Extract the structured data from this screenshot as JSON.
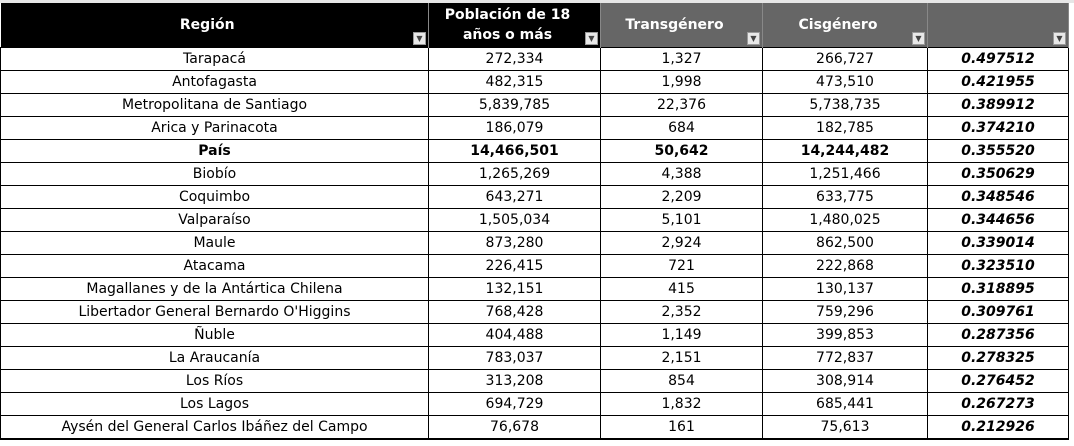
{
  "headers": [
    "Región",
    "Población de 18 años o más",
    "Transgénero",
    "Cisgénero",
    ""
  ],
  "filter_icon": "dropdown-arrow-icon",
  "rows": [
    [
      "Tarapacá",
      "272,334",
      "1,327",
      "266,727",
      "0.497512"
    ],
    [
      "Antofagasta",
      "482,315",
      "1,998",
      "473,510",
      "0.421955"
    ],
    [
      "Metropolitana de Santiago",
      "5,839,785",
      "22,376",
      "5,738,735",
      "0.389912"
    ],
    [
      "Arica y Parinacota",
      "186,079",
      "684",
      "182,785",
      "0.374210"
    ],
    [
      "País",
      "14,466,501",
      "50,642",
      "14,244,482",
      "0.355520"
    ],
    [
      "Biobío",
      "1,265,269",
      "4,388",
      "1,251,466",
      "0.350629"
    ],
    [
      "Coquimbo",
      "643,271",
      "2,209",
      "633,775",
      "0.348546"
    ],
    [
      "Valparaíso",
      "1,505,034",
      "5,101",
      "1,480,025",
      "0.344656"
    ],
    [
      "Maule",
      "873,280",
      "2,924",
      "862,500",
      "0.339014"
    ],
    [
      "Atacama",
      "226,415",
      "721",
      "222,868",
      "0.323510"
    ],
    [
      "Magallanes y de la Antártica Chilena",
      "132,151",
      "415",
      "130,137",
      "0.318895"
    ],
    [
      "Libertador General Bernardo O'Higgins",
      "768,428",
      "2,352",
      "759,296",
      "0.309761"
    ],
    [
      "Ñuble",
      "404,488",
      "1,149",
      "399,853",
      "0.287356"
    ],
    [
      "La Araucanía",
      "783,037",
      "2,151",
      "772,837",
      "0.278325"
    ],
    [
      "Los Ríos",
      "313,208",
      "854",
      "308,914",
      "0.276452"
    ],
    [
      "Los Lagos",
      "694,729",
      "1,832",
      "685,441",
      "0.267273"
    ],
    [
      "Aysén del General Carlos Ibáñez del Campo",
      "76,678",
      "161",
      "75,613",
      "0.212926"
    ]
  ],
  "bold_row": "País"
}
